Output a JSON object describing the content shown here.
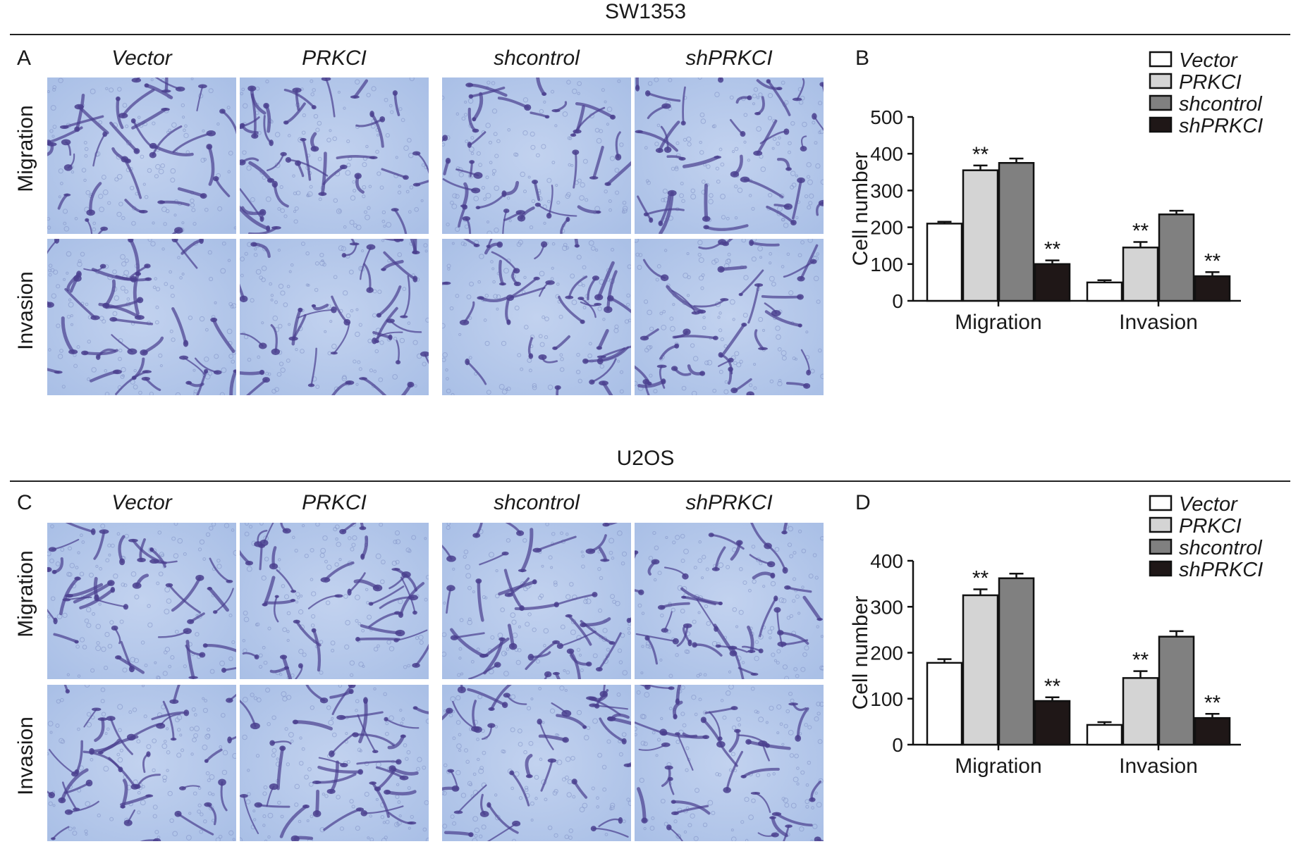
{
  "sections": [
    {
      "title": "SW1353",
      "micro_letter": "A",
      "chart_letter": "B",
      "columns": [
        "Vector",
        "PRKCI",
        "shcontrol",
        "shPRKCI"
      ],
      "rows": [
        "Migration",
        "Invasion"
      ],
      "chart": {
        "type": "bar",
        "categories": [
          "Migration",
          "Invasion"
        ],
        "ylabel": "Cell number",
        "ylim": [
          0,
          500
        ],
        "yticks": [
          0,
          100,
          200,
          300,
          400,
          500
        ],
        "series": [
          {
            "name": "Vector",
            "values": [
              210,
              50
            ],
            "errors": [
              5,
              6
            ],
            "color": "#ffffff",
            "marks": [
              "",
              ""
            ]
          },
          {
            "name": "PRKCI",
            "values": [
              355,
              145
            ],
            "errors": [
              13,
              15
            ],
            "color": "#d4d4d4",
            "marks": [
              "**",
              "**"
            ]
          },
          {
            "name": "shcontrol",
            "values": [
              375,
              235
            ],
            "errors": [
              12,
              10
            ],
            "color": "#808080",
            "marks": [
              "",
              ""
            ]
          },
          {
            "name": "shPRKCI",
            "values": [
              100,
              67
            ],
            "errors": [
              10,
              11
            ],
            "color": "#1f1717",
            "marks": [
              "**",
              "**"
            ]
          }
        ],
        "legend_position": "top-right"
      }
    },
    {
      "title": "U2OS",
      "micro_letter": "C",
      "chart_letter": "D",
      "columns": [
        "Vector",
        "PRKCI",
        "shcontrol",
        "shPRKCI"
      ],
      "rows": [
        "Migration",
        "Invasion"
      ],
      "chart": {
        "type": "bar",
        "categories": [
          "Migration",
          "Invasion"
        ],
        "ylabel": "Cell number",
        "ylim": [
          0,
          400
        ],
        "yticks": [
          0,
          100,
          200,
          300,
          400
        ],
        "series": [
          {
            "name": "Vector",
            "values": [
              178,
              43
            ],
            "errors": [
              8,
              6
            ],
            "color": "#ffffff",
            "marks": [
              "",
              ""
            ]
          },
          {
            "name": "PRKCI",
            "values": [
              325,
              145
            ],
            "errors": [
              13,
              15
            ],
            "color": "#d4d4d4",
            "marks": [
              "**",
              "**"
            ]
          },
          {
            "name": "shcontrol",
            "values": [
              362,
              235
            ],
            "errors": [
              10,
              12
            ],
            "color": "#808080",
            "marks": [
              "",
              ""
            ]
          },
          {
            "name": "shPRKCI",
            "values": [
              95,
              58
            ],
            "errors": [
              8,
              9
            ],
            "color": "#1f1717",
            "marks": [
              "**",
              "**"
            ]
          }
        ],
        "legend_position": "top-right"
      }
    }
  ],
  "micrograph_colors": {
    "background": "#a9bfe6",
    "stain": "#4a3f8e"
  }
}
